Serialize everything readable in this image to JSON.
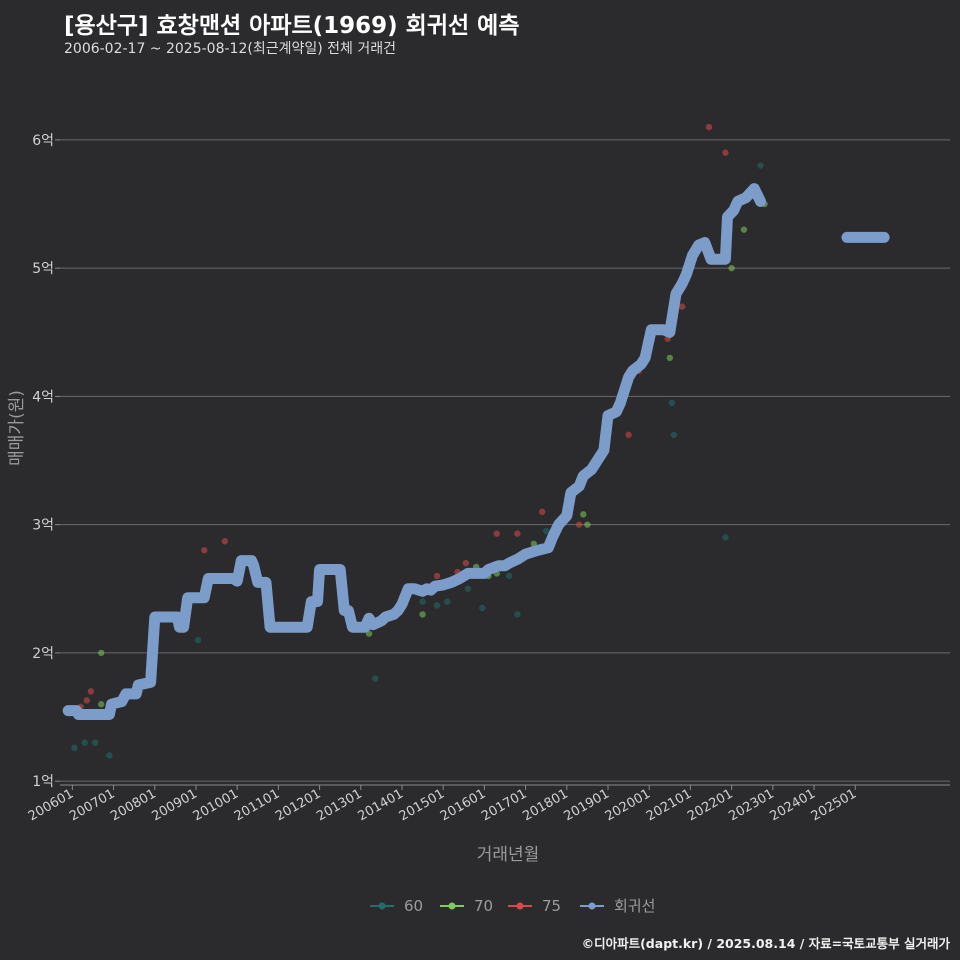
{
  "title": "[용산구] 효창맨션 아파트(1969) 회귀선 예측",
  "subtitle": "2006-02-17 ~ 2025-08-12(최근계약일) 전체 거래건",
  "footer": "©디아파트(dapt.kr) / 2025.08.14 / 자료=국토교통부 실거래가",
  "chart_data": {
    "type": "scatter",
    "xlabel": "거래년월",
    "ylabel": "매매가(원)",
    "xlim": [
      2005.7,
      2027.3
    ],
    "ylim": [
      0.97,
      6.35
    ],
    "y_ticks": [
      1,
      2,
      3,
      4,
      5,
      6
    ],
    "y_tick_labels": [
      "1억",
      "2억",
      "3억",
      "4억",
      "5억",
      "6억"
    ],
    "x_ticks": [
      2006,
      2007,
      2008,
      2009,
      2010,
      2011,
      2012,
      2013,
      2014,
      2015,
      2016,
      2017,
      2018,
      2019,
      2020,
      2021,
      2022,
      2023,
      2024,
      2025
    ],
    "x_tick_labels": [
      "200601",
      "200701",
      "200801",
      "200901",
      "201001",
      "201101",
      "201201",
      "201301",
      "201401",
      "201501",
      "201601",
      "201701",
      "201801",
      "201901",
      "202001",
      "202101",
      "202201",
      "202301",
      "202401",
      "202501"
    ],
    "legend": [
      {
        "name": "60",
        "color": "#1f6e6a"
      },
      {
        "name": "70",
        "color": "#7ccd5a"
      },
      {
        "name": "75",
        "color": "#d84a4a"
      },
      {
        "name": "회귀선",
        "color": "#7c9cc9"
      }
    ],
    "series": [
      {
        "name": "60",
        "color": "#1f6e6a",
        "points": [
          [
            2006.05,
            1.26
          ],
          [
            2006.3,
            1.3
          ],
          [
            2006.55,
            1.3
          ],
          [
            2006.9,
            1.2
          ],
          [
            2009.05,
            2.1
          ],
          [
            2013.35,
            1.8
          ],
          [
            2014.5,
            2.4
          ],
          [
            2014.85,
            2.37
          ],
          [
            2015.1,
            2.4
          ],
          [
            2015.6,
            2.5
          ],
          [
            2015.95,
            2.35
          ],
          [
            2016.6,
            2.6
          ],
          [
            2016.8,
            2.3
          ],
          [
            2017.5,
            2.95
          ],
          [
            2020.55,
            3.95
          ],
          [
            2020.6,
            3.7
          ],
          [
            2021.85,
            2.9
          ],
          [
            2022.7,
            5.8
          ]
        ]
      },
      {
        "name": "70",
        "color": "#7ccd5a",
        "points": [
          [
            2006.7,
            2.0
          ],
          [
            2006.7,
            1.6
          ],
          [
            2013.2,
            2.15
          ],
          [
            2014.5,
            2.3
          ],
          [
            2015.8,
            2.67
          ],
          [
            2016.1,
            2.6
          ],
          [
            2016.3,
            2.62
          ],
          [
            2017.2,
            2.85
          ],
          [
            2018.4,
            3.08
          ],
          [
            2018.5,
            3.0
          ],
          [
            2020.5,
            4.3
          ],
          [
            2022.0,
            5.0
          ],
          [
            2022.3,
            5.3
          ],
          [
            2022.8,
            5.5
          ]
        ]
      },
      {
        "name": "75",
        "color": "#d84a4a",
        "points": [
          [
            2006.2,
            1.58
          ],
          [
            2006.35,
            1.63
          ],
          [
            2006.45,
            1.7
          ],
          [
            2009.2,
            2.8
          ],
          [
            2009.7,
            2.87
          ],
          [
            2014.85,
            2.6
          ],
          [
            2015.35,
            2.63
          ],
          [
            2015.55,
            2.7
          ],
          [
            2016.3,
            2.93
          ],
          [
            2016.8,
            2.93
          ],
          [
            2017.4,
            3.1
          ],
          [
            2018.3,
            3.0
          ],
          [
            2019.5,
            3.7
          ],
          [
            2019.75,
            4.2
          ],
          [
            2020.45,
            4.45
          ],
          [
            2020.8,
            4.7
          ],
          [
            2021.45,
            6.1
          ],
          [
            2021.85,
            5.9
          ]
        ]
      },
      {
        "name": "회귀선",
        "color": "#7c9cc9",
        "segments": [
          [
            [
              2005.9,
              1.55
            ],
            [
              2006.1,
              1.55
            ],
            [
              2006.15,
              1.52
            ],
            [
              2006.6,
              1.52
            ],
            [
              2006.9,
              1.52
            ],
            [
              2006.95,
              1.6
            ],
            [
              2007.2,
              1.62
            ],
            [
              2007.3,
              1.68
            ],
            [
              2007.55,
              1.68
            ],
            [
              2007.6,
              1.75
            ],
            [
              2007.9,
              1.77
            ],
            [
              2008.0,
              2.28
            ],
            [
              2008.55,
              2.28
            ],
            [
              2008.6,
              2.2
            ],
            [
              2008.7,
              2.2
            ],
            [
              2008.8,
              2.43
            ],
            [
              2009.2,
              2.43
            ],
            [
              2009.3,
              2.58
            ],
            [
              2009.9,
              2.58
            ],
            [
              2010.0,
              2.56
            ],
            [
              2010.1,
              2.72
            ],
            [
              2010.35,
              2.72
            ],
            [
              2010.4,
              2.68
            ],
            [
              2010.5,
              2.55
            ],
            [
              2010.7,
              2.55
            ],
            [
              2010.8,
              2.2
            ],
            [
              2011.7,
              2.2
            ],
            [
              2011.8,
              2.4
            ],
            [
              2011.95,
              2.4
            ],
            [
              2012.0,
              2.65
            ],
            [
              2012.5,
              2.65
            ],
            [
              2012.6,
              2.33
            ],
            [
              2012.7,
              2.33
            ],
            [
              2012.8,
              2.2
            ],
            [
              2013.1,
              2.2
            ],
            [
              2013.2,
              2.27
            ],
            [
              2013.3,
              2.22
            ],
            [
              2013.5,
              2.25
            ],
            [
              2013.6,
              2.28
            ],
            [
              2013.8,
              2.3
            ],
            [
              2013.9,
              2.33
            ],
            [
              2014.0,
              2.38
            ],
            [
              2014.15,
              2.5
            ],
            [
              2014.3,
              2.5
            ],
            [
              2014.5,
              2.48
            ],
            [
              2014.6,
              2.5
            ],
            [
              2014.7,
              2.49
            ],
            [
              2014.8,
              2.52
            ],
            [
              2015.0,
              2.53
            ],
            [
              2015.2,
              2.55
            ],
            [
              2015.4,
              2.58
            ],
            [
              2015.6,
              2.62
            ],
            [
              2016.0,
              2.62
            ],
            [
              2016.1,
              2.65
            ],
            [
              2016.35,
              2.68
            ],
            [
              2016.5,
              2.68
            ],
            [
              2016.6,
              2.7
            ],
            [
              2016.8,
              2.73
            ],
            [
              2017.0,
              2.77
            ],
            [
              2017.3,
              2.8
            ],
            [
              2017.55,
              2.82
            ],
            [
              2017.65,
              2.9
            ],
            [
              2017.8,
              3.0
            ],
            [
              2018.0,
              3.07
            ],
            [
              2018.1,
              3.25
            ],
            [
              2018.3,
              3.3
            ],
            [
              2018.4,
              3.38
            ],
            [
              2018.6,
              3.43
            ],
            [
              2018.7,
              3.48
            ],
            [
              2018.9,
              3.58
            ],
            [
              2019.0,
              3.85
            ],
            [
              2019.2,
              3.88
            ],
            [
              2019.3,
              3.95
            ],
            [
              2019.5,
              4.15
            ],
            [
              2019.6,
              4.2
            ],
            [
              2019.8,
              4.25
            ],
            [
              2019.9,
              4.3
            ],
            [
              2020.05,
              4.52
            ],
            [
              2020.35,
              4.52
            ],
            [
              2020.5,
              4.5
            ],
            [
              2020.65,
              4.8
            ],
            [
              2020.8,
              4.88
            ],
            [
              2020.9,
              4.95
            ],
            [
              2021.05,
              5.1
            ],
            [
              2021.2,
              5.18
            ],
            [
              2021.35,
              5.2
            ],
            [
              2021.5,
              5.07
            ],
            [
              2021.85,
              5.07
            ],
            [
              2021.9,
              5.4
            ],
            [
              2022.05,
              5.45
            ],
            [
              2022.15,
              5.52
            ],
            [
              2022.35,
              5.55
            ],
            [
              2022.55,
              5.62
            ],
            [
              2022.7,
              5.52
            ]
          ],
          [
            [
              2024.8,
              5.24
            ],
            [
              2025.7,
              5.24
            ]
          ]
        ]
      }
    ]
  }
}
